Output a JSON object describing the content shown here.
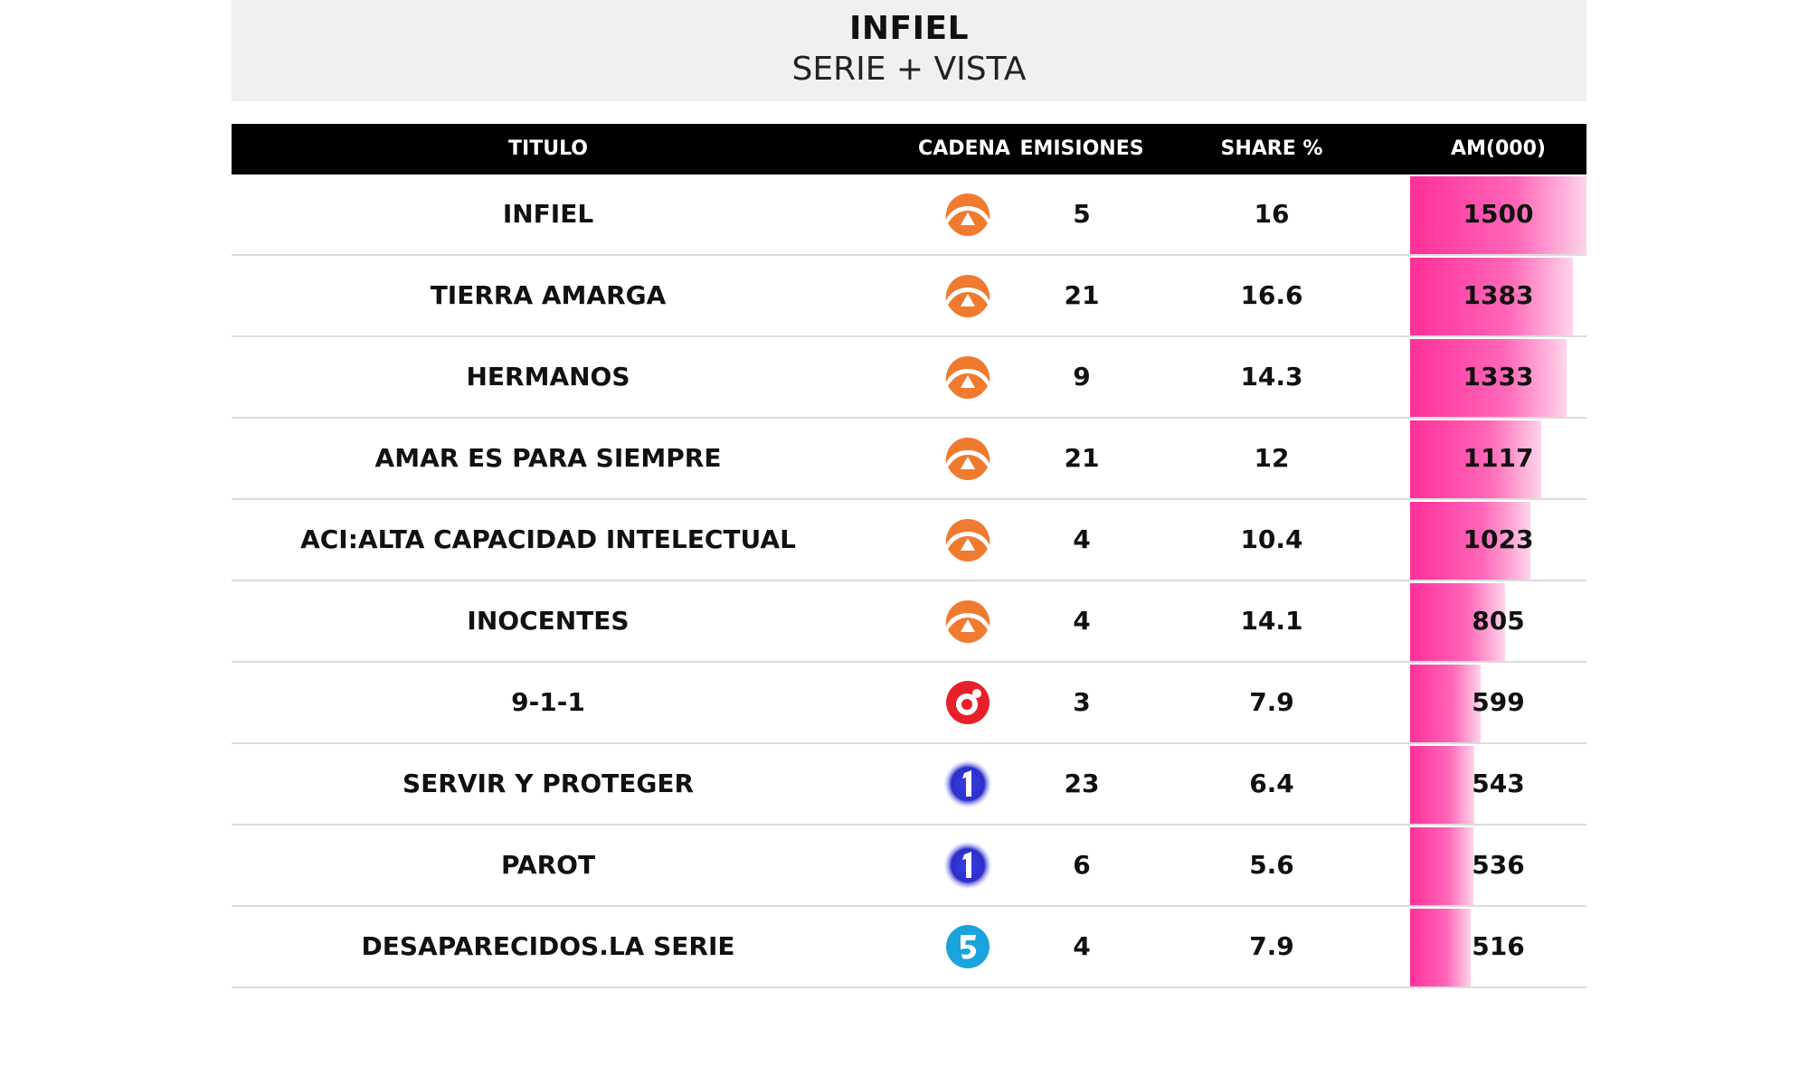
{
  "chart_data": {
    "type": "table",
    "title": "INFIEL",
    "subtitle": "SERIE + VISTA",
    "columns": [
      "TITULO",
      "CADENA",
      "EMISIONES",
      "SHARE %",
      "AM(000)"
    ],
    "am_max": 1500,
    "rows": [
      {
        "titulo": "INFIEL",
        "cadena": "antena3-logo",
        "emisiones": "5",
        "share": "16",
        "am": "1500",
        "am_value": 1500
      },
      {
        "titulo": "TIERRA AMARGA",
        "cadena": "antena3-logo",
        "emisiones": "21",
        "share": "16.6",
        "am": "1383",
        "am_value": 1383
      },
      {
        "titulo": "HERMANOS",
        "cadena": "antena3-logo",
        "emisiones": "9",
        "share": "14.3",
        "am": "1333",
        "am_value": 1333
      },
      {
        "titulo": "AMAR ES PARA SIEMPRE",
        "cadena": "antena3-logo",
        "emisiones": "21",
        "share": "12",
        "am": "1117",
        "am_value": 1117
      },
      {
        "titulo": "ACI:ALTA CAPACIDAD INTELECTUAL",
        "cadena": "antena3-logo",
        "emisiones": "4",
        "share": "10.4",
        "am": "1023",
        "am_value": 1023
      },
      {
        "titulo": "INOCENTES",
        "cadena": "antena3-logo",
        "emisiones": "4",
        "share": "14.1",
        "am": "805",
        "am_value": 805
      },
      {
        "titulo": "9-1-1",
        "cadena": "cuatro-logo",
        "emisiones": "3",
        "share": "7.9",
        "am": "599",
        "am_value": 599
      },
      {
        "titulo": "SERVIR Y PROTEGER",
        "cadena": "la1-logo",
        "emisiones": "23",
        "share": "6.4",
        "am": "543",
        "am_value": 543
      },
      {
        "titulo": "PAROT",
        "cadena": "la1-logo",
        "emisiones": "6",
        "share": "5.6",
        "am": "536",
        "am_value": 536
      },
      {
        "titulo": "DESAPARECIDOS.LA SERIE",
        "cadena": "telecinco-logo",
        "emisiones": "4",
        "share": "7.9",
        "am": "516",
        "am_value": 516
      }
    ]
  },
  "colors": {
    "header_bg": "#000000",
    "bar": "#ff2f9a",
    "antena3": "#f07a2f",
    "cuatro": "#e8202a",
    "la1": "#2b2fc9",
    "telecinco": "#1aa3dc"
  }
}
